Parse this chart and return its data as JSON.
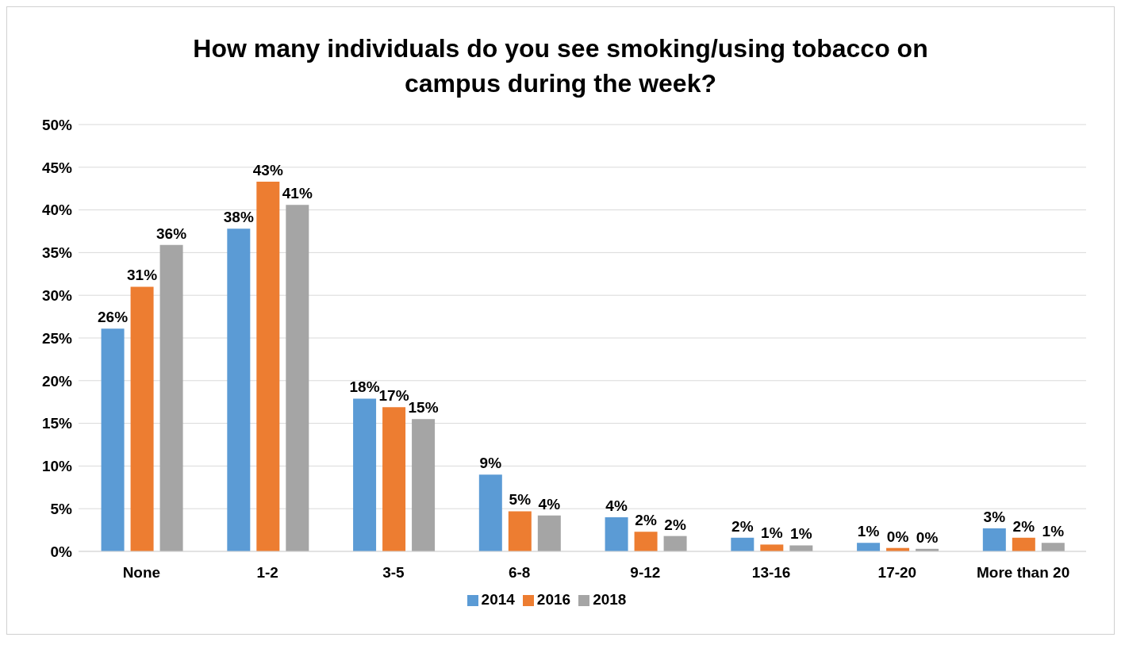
{
  "chart_data": {
    "type": "bar",
    "title": "How many individuals do you see smoking/using tobacco on campus during the week?",
    "categories": [
      "None",
      "1-2",
      "3-5",
      "6-8",
      "9-12",
      "13-16",
      "17-20",
      "More than 20"
    ],
    "series": [
      {
        "name": "2014",
        "color": "#5b9bd5",
        "values": [
          26.1,
          37.8,
          17.9,
          9.0,
          4.0,
          1.6,
          1.0,
          2.7
        ],
        "value_labels": [
          "26%",
          "38%",
          "18%",
          "9%",
          "4%",
          "2%",
          "1%",
          "3%"
        ]
      },
      {
        "name": "2016",
        "color": "#ed7d31",
        "values": [
          31.0,
          43.3,
          16.9,
          4.7,
          2.3,
          0.8,
          0.4,
          1.6
        ],
        "value_labels": [
          "31%",
          "43%",
          "17%",
          "5%",
          "2%",
          "1%",
          "0%",
          "2%"
        ]
      },
      {
        "name": "2018",
        "color": "#a5a5a5",
        "values": [
          35.9,
          40.6,
          15.5,
          4.2,
          1.8,
          0.7,
          0.3,
          1.0
        ],
        "value_labels": [
          "36%",
          "41%",
          "15%",
          "4%",
          "2%",
          "1%",
          "0%",
          "1%"
        ]
      }
    ],
    "ylim": [
      0,
      50
    ],
    "yticks": [
      {
        "value": 0,
        "label": "0%"
      },
      {
        "value": 5,
        "label": "5%"
      },
      {
        "value": 10,
        "label": "10%"
      },
      {
        "value": 15,
        "label": "15%"
      },
      {
        "value": 20,
        "label": "20%"
      },
      {
        "value": 25,
        "label": "25%"
      },
      {
        "value": 30,
        "label": "30%"
      },
      {
        "value": 35,
        "label": "35%"
      },
      {
        "value": 40,
        "label": "40%"
      },
      {
        "value": 45,
        "label": "45%"
      },
      {
        "value": 50,
        "label": "50%"
      }
    ],
    "grid": "y",
    "legend": "bottom"
  }
}
